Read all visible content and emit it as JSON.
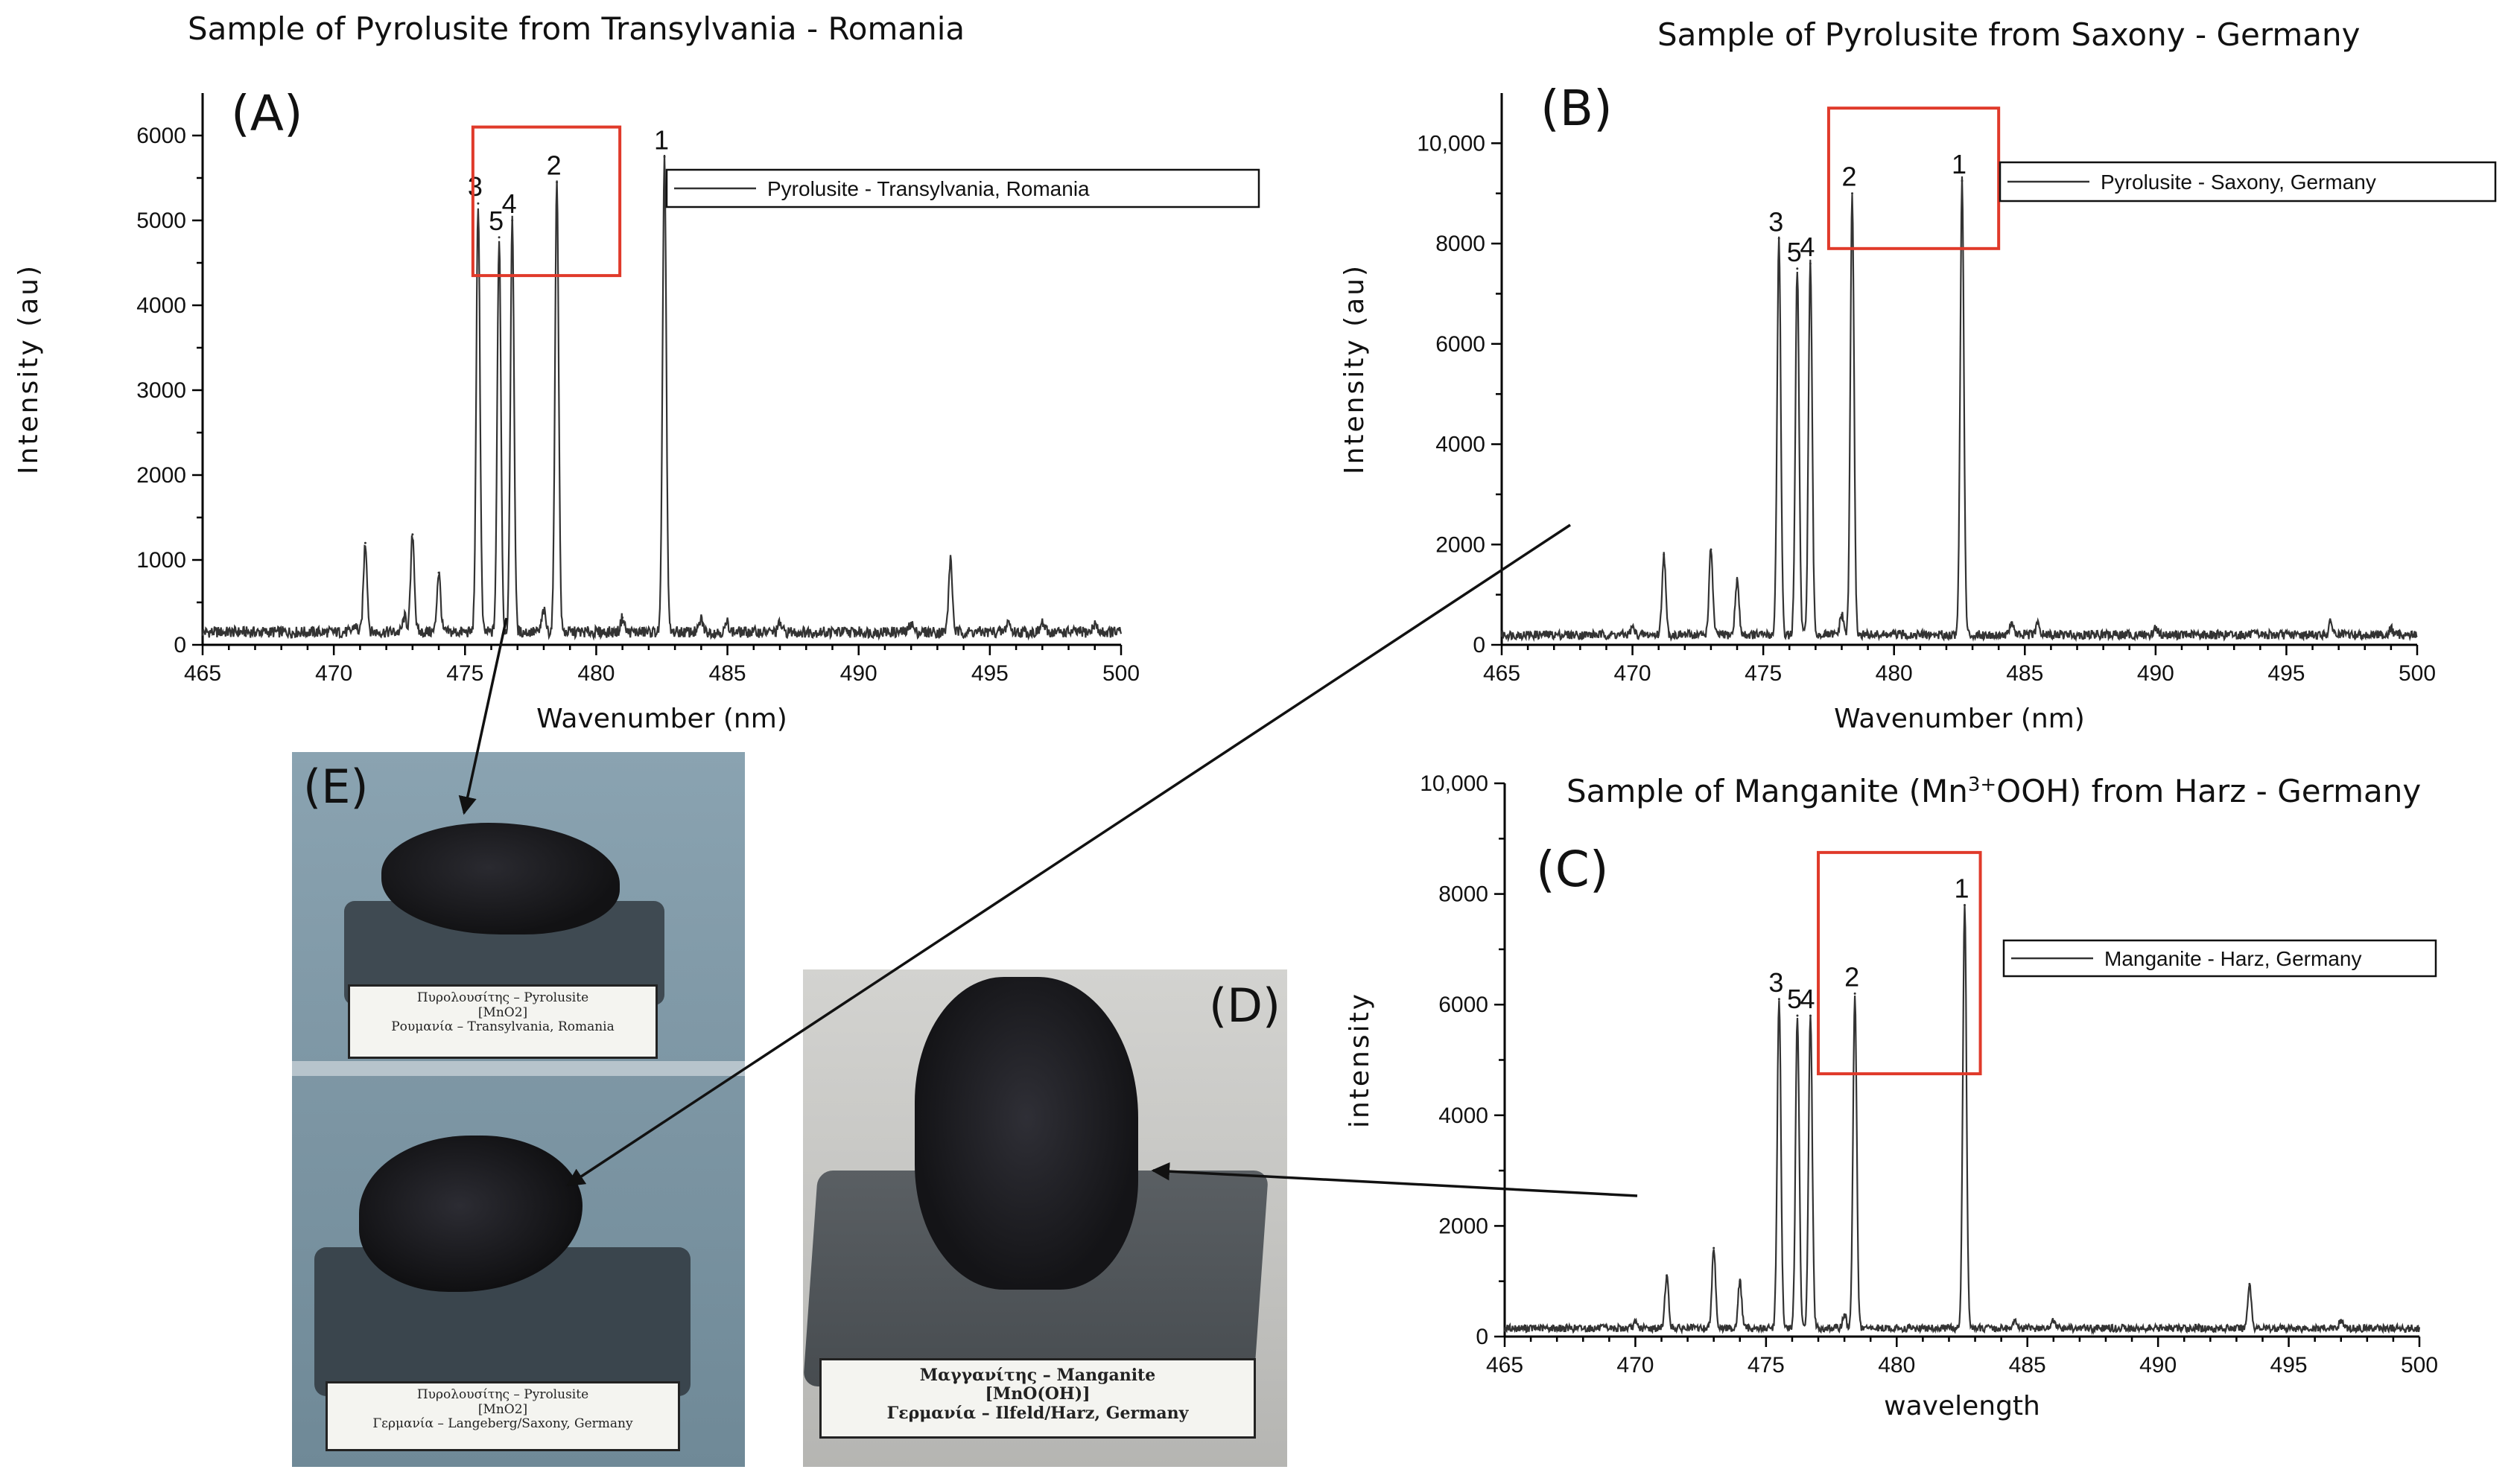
{
  "titles": {
    "a": "Sample of Pyrolusite from Transylvania - Romania",
    "b": "Sample of Pyrolusite from Saxony - Germany",
    "c_pre": "Sample of Manganite (Mn",
    "c_sup": "3+",
    "c_post": "OOH) from Harz - Germany"
  },
  "photo_labels": {
    "e_top": [
      "Πυρολουσίτης – Pyrolusite",
      "[MnO2]",
      "Ρουμανία – Transylvania, Romania"
    ],
    "e_bottom": [
      "Πυρολουσίτης – Pyrolusite",
      "[MnO2]",
      "Γερμανία – Langeberg/Saxony, Germany"
    ],
    "d": [
      "Μαγγανίτης – Manganite",
      "[MnO(OH)]",
      "Γερμανία – Ilfeld/Harz, Germany"
    ]
  },
  "photo_letters": {
    "e": "(E)",
    "d": "(D)"
  },
  "colors": {
    "highlight": "#e03a2a",
    "line": "#333333",
    "photo_bg": "#7d96a4"
  },
  "chart_data": [
    {
      "type": "line",
      "panel": "(A)",
      "title": "Sample of Pyrolusite from Transylvania - Romania",
      "xlabel": "Wavenumber (nm)",
      "ylabel": "Intensity (au)",
      "xlim": [
        465,
        500
      ],
      "ylim": [
        0,
        6500
      ],
      "xticks": [
        465,
        470,
        475,
        480,
        485,
        490,
        495,
        500
      ],
      "yticks": [
        0,
        1000,
        2000,
        3000,
        4000,
        5000,
        6000
      ],
      "ytick_labels": [
        "0",
        "1000",
        "2000",
        "3000",
        "4000",
        "5000",
        "6000"
      ],
      "legend": "Pyrolusite - Transylvania, Romania",
      "legend_position": "top-right",
      "baseline": 150,
      "peaks": [
        {
          "x": 470.8,
          "y": 230
        },
        {
          "x": 471.2,
          "y": 1200
        },
        {
          "x": 472.7,
          "y": 330
        },
        {
          "x": 473.0,
          "y": 1300
        },
        {
          "x": 474.0,
          "y": 850
        },
        {
          "x": 475.5,
          "y": 5200,
          "label": "3"
        },
        {
          "x": 476.3,
          "y": 4800,
          "label": "5"
        },
        {
          "x": 476.8,
          "y": 5000,
          "label": "4"
        },
        {
          "x": 478.0,
          "y": 400
        },
        {
          "x": 478.5,
          "y": 5450,
          "label": "2"
        },
        {
          "x": 481.0,
          "y": 320
        },
        {
          "x": 482.6,
          "y": 5750,
          "label": "1"
        },
        {
          "x": 484.0,
          "y": 300
        },
        {
          "x": 485.0,
          "y": 260
        },
        {
          "x": 487.0,
          "y": 250
        },
        {
          "x": 492.0,
          "y": 260
        },
        {
          "x": 493.5,
          "y": 1000
        },
        {
          "x": 495.7,
          "y": 280
        },
        {
          "x": 497.0,
          "y": 260
        },
        {
          "x": 499.0,
          "y": 250
        }
      ],
      "highlight": {
        "x": [
          475.3,
          480.9
        ],
        "y": [
          4350,
          6100
        ]
      }
    },
    {
      "type": "line",
      "panel": "(B)",
      "title": "Sample of Pyrolusite from Saxony - Germany",
      "xlabel": "Wavenumber (nm)",
      "ylabel": "Intensity (au)",
      "xlim": [
        465,
        500
      ],
      "ylim": [
        0,
        11000
      ],
      "xticks": [
        465,
        470,
        475,
        480,
        485,
        490,
        495,
        500
      ],
      "yticks": [
        0,
        2000,
        4000,
        6000,
        8000,
        10000
      ],
      "ytick_labels": [
        "0",
        "2000",
        "4000",
        "6000",
        "8000",
        "10,000"
      ],
      "legend": "Pyrolusite - Saxony, Germany",
      "legend_position": "top-right",
      "baseline": 200,
      "peaks": [
        {
          "x": 470.0,
          "y": 350
        },
        {
          "x": 471.2,
          "y": 1800
        },
        {
          "x": 473.0,
          "y": 1900
        },
        {
          "x": 474.0,
          "y": 1300
        },
        {
          "x": 475.6,
          "y": 8100,
          "label": "3"
        },
        {
          "x": 476.3,
          "y": 7500,
          "label": "5"
        },
        {
          "x": 476.8,
          "y": 7600,
          "label": "4"
        },
        {
          "x": 478.0,
          "y": 600
        },
        {
          "x": 478.4,
          "y": 9000,
          "label": "2"
        },
        {
          "x": 482.6,
          "y": 9250,
          "label": "1"
        },
        {
          "x": 484.5,
          "y": 450
        },
        {
          "x": 485.5,
          "y": 420
        },
        {
          "x": 490.0,
          "y": 350
        },
        {
          "x": 496.7,
          "y": 450
        },
        {
          "x": 499.0,
          "y": 320
        }
      ],
      "highlight": {
        "x": [
          477.5,
          484.0
        ],
        "y": [
          7900,
          10700
        ]
      }
    },
    {
      "type": "line",
      "panel": "(C)",
      "title": "Sample of Manganite (Mn3+OOH) from Harz - Germany",
      "xlabel": "wavelength",
      "ylabel": "intensity",
      "xlim": [
        465,
        500
      ],
      "ylim": [
        0,
        10000
      ],
      "xticks": [
        465,
        470,
        475,
        480,
        485,
        490,
        495,
        500
      ],
      "yticks": [
        0,
        2000,
        4000,
        6000,
        8000,
        10000
      ],
      "ytick_labels": [
        "0",
        "2000",
        "4000",
        "6000",
        "8000",
        "10,000"
      ],
      "legend": "Manganite - Harz, Germany",
      "legend_position": "top-right",
      "baseline": 150,
      "peaks": [
        {
          "x": 470.0,
          "y": 250
        },
        {
          "x": 471.2,
          "y": 1100
        },
        {
          "x": 473.0,
          "y": 1600
        },
        {
          "x": 474.0,
          "y": 1000
        },
        {
          "x": 475.5,
          "y": 6100,
          "label": "3"
        },
        {
          "x": 476.2,
          "y": 5800,
          "label": "5"
        },
        {
          "x": 476.7,
          "y": 5800,
          "label": "4"
        },
        {
          "x": 478.0,
          "y": 400
        },
        {
          "x": 478.4,
          "y": 6200,
          "label": "2"
        },
        {
          "x": 482.6,
          "y": 7800,
          "label": "1"
        },
        {
          "x": 484.5,
          "y": 300
        },
        {
          "x": 486.0,
          "y": 280
        },
        {
          "x": 493.5,
          "y": 950
        },
        {
          "x": 497.0,
          "y": 300
        }
      ],
      "highlight": {
        "x": [
          477.0,
          483.2
        ],
        "y": [
          4750,
          8750
        ]
      }
    }
  ]
}
